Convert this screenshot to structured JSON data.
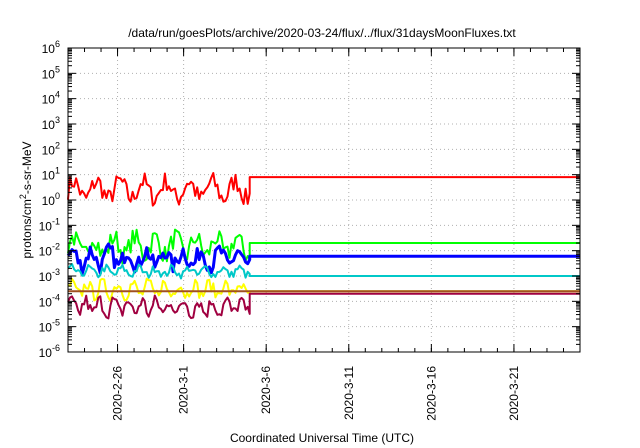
{
  "chart_data": {
    "type": "line",
    "title": "/data/run/goesPlots/archive/2020-03-24/flux/../flux/31daysMoonFluxes.txt",
    "xlabel": "Coordinated Universal Time (UTC)",
    "ylabel": "protons/cm²-s-sr-MeV",
    "y_scale": "log",
    "ylim": [
      1e-06,
      1000000.0
    ],
    "y_ticks": [
      {
        "base": "10",
        "exp": "-6"
      },
      {
        "base": "10",
        "exp": "-5"
      },
      {
        "base": "10",
        "exp": "-4"
      },
      {
        "base": "10",
        "exp": "-3"
      },
      {
        "base": "10",
        "exp": "-2"
      },
      {
        "base": "10",
        "exp": "-1"
      },
      {
        "base": "10",
        "exp": "0"
      },
      {
        "base": "10",
        "exp": "1"
      },
      {
        "base": "10",
        "exp": "2"
      },
      {
        "base": "10",
        "exp": "3"
      },
      {
        "base": "10",
        "exp": "4"
      },
      {
        "base": "10",
        "exp": "5"
      },
      {
        "base": "10",
        "exp": "6"
      }
    ],
    "xlim": [
      "2020-02-23",
      "2020-03-25"
    ],
    "x_ticks": [
      "2020-2-26",
      "2020-3-1",
      "2020-3-6",
      "2020-3-11",
      "2020-3-16",
      "2020-3-21"
    ],
    "grid": true,
    "data_end": "2020-03-05",
    "series": [
      {
        "color": "#ff0000",
        "level": 8,
        "low": 0.6,
        "high": 15,
        "mean": 2.5
      },
      {
        "color": "#00ff00",
        "level": 0.02,
        "low": 0.003,
        "high": 0.08,
        "mean": 0.015
      },
      {
        "color": "#0000ff",
        "level": 0.006,
        "low": 0.0012,
        "high": 0.02,
        "mean": 0.005
      },
      {
        "color": "#00c8c8",
        "level": 0.001,
        "low": 0.0008,
        "high": 0.003,
        "mean": 0.0015
      },
      {
        "color": "#ffff00",
        "level": 0.00025,
        "low": 0.0001,
        "high": 0.0008,
        "mean": 0.0003
      },
      {
        "color": "#a00040",
        "level": 0.0002,
        "low": 2e-05,
        "high": 0.0002,
        "mean": 6e-05
      },
      {
        "color": "#a05020",
        "level": 0.00025,
        "low": 0.00025,
        "high": 0.00025,
        "mean": 0.00025
      }
    ]
  }
}
